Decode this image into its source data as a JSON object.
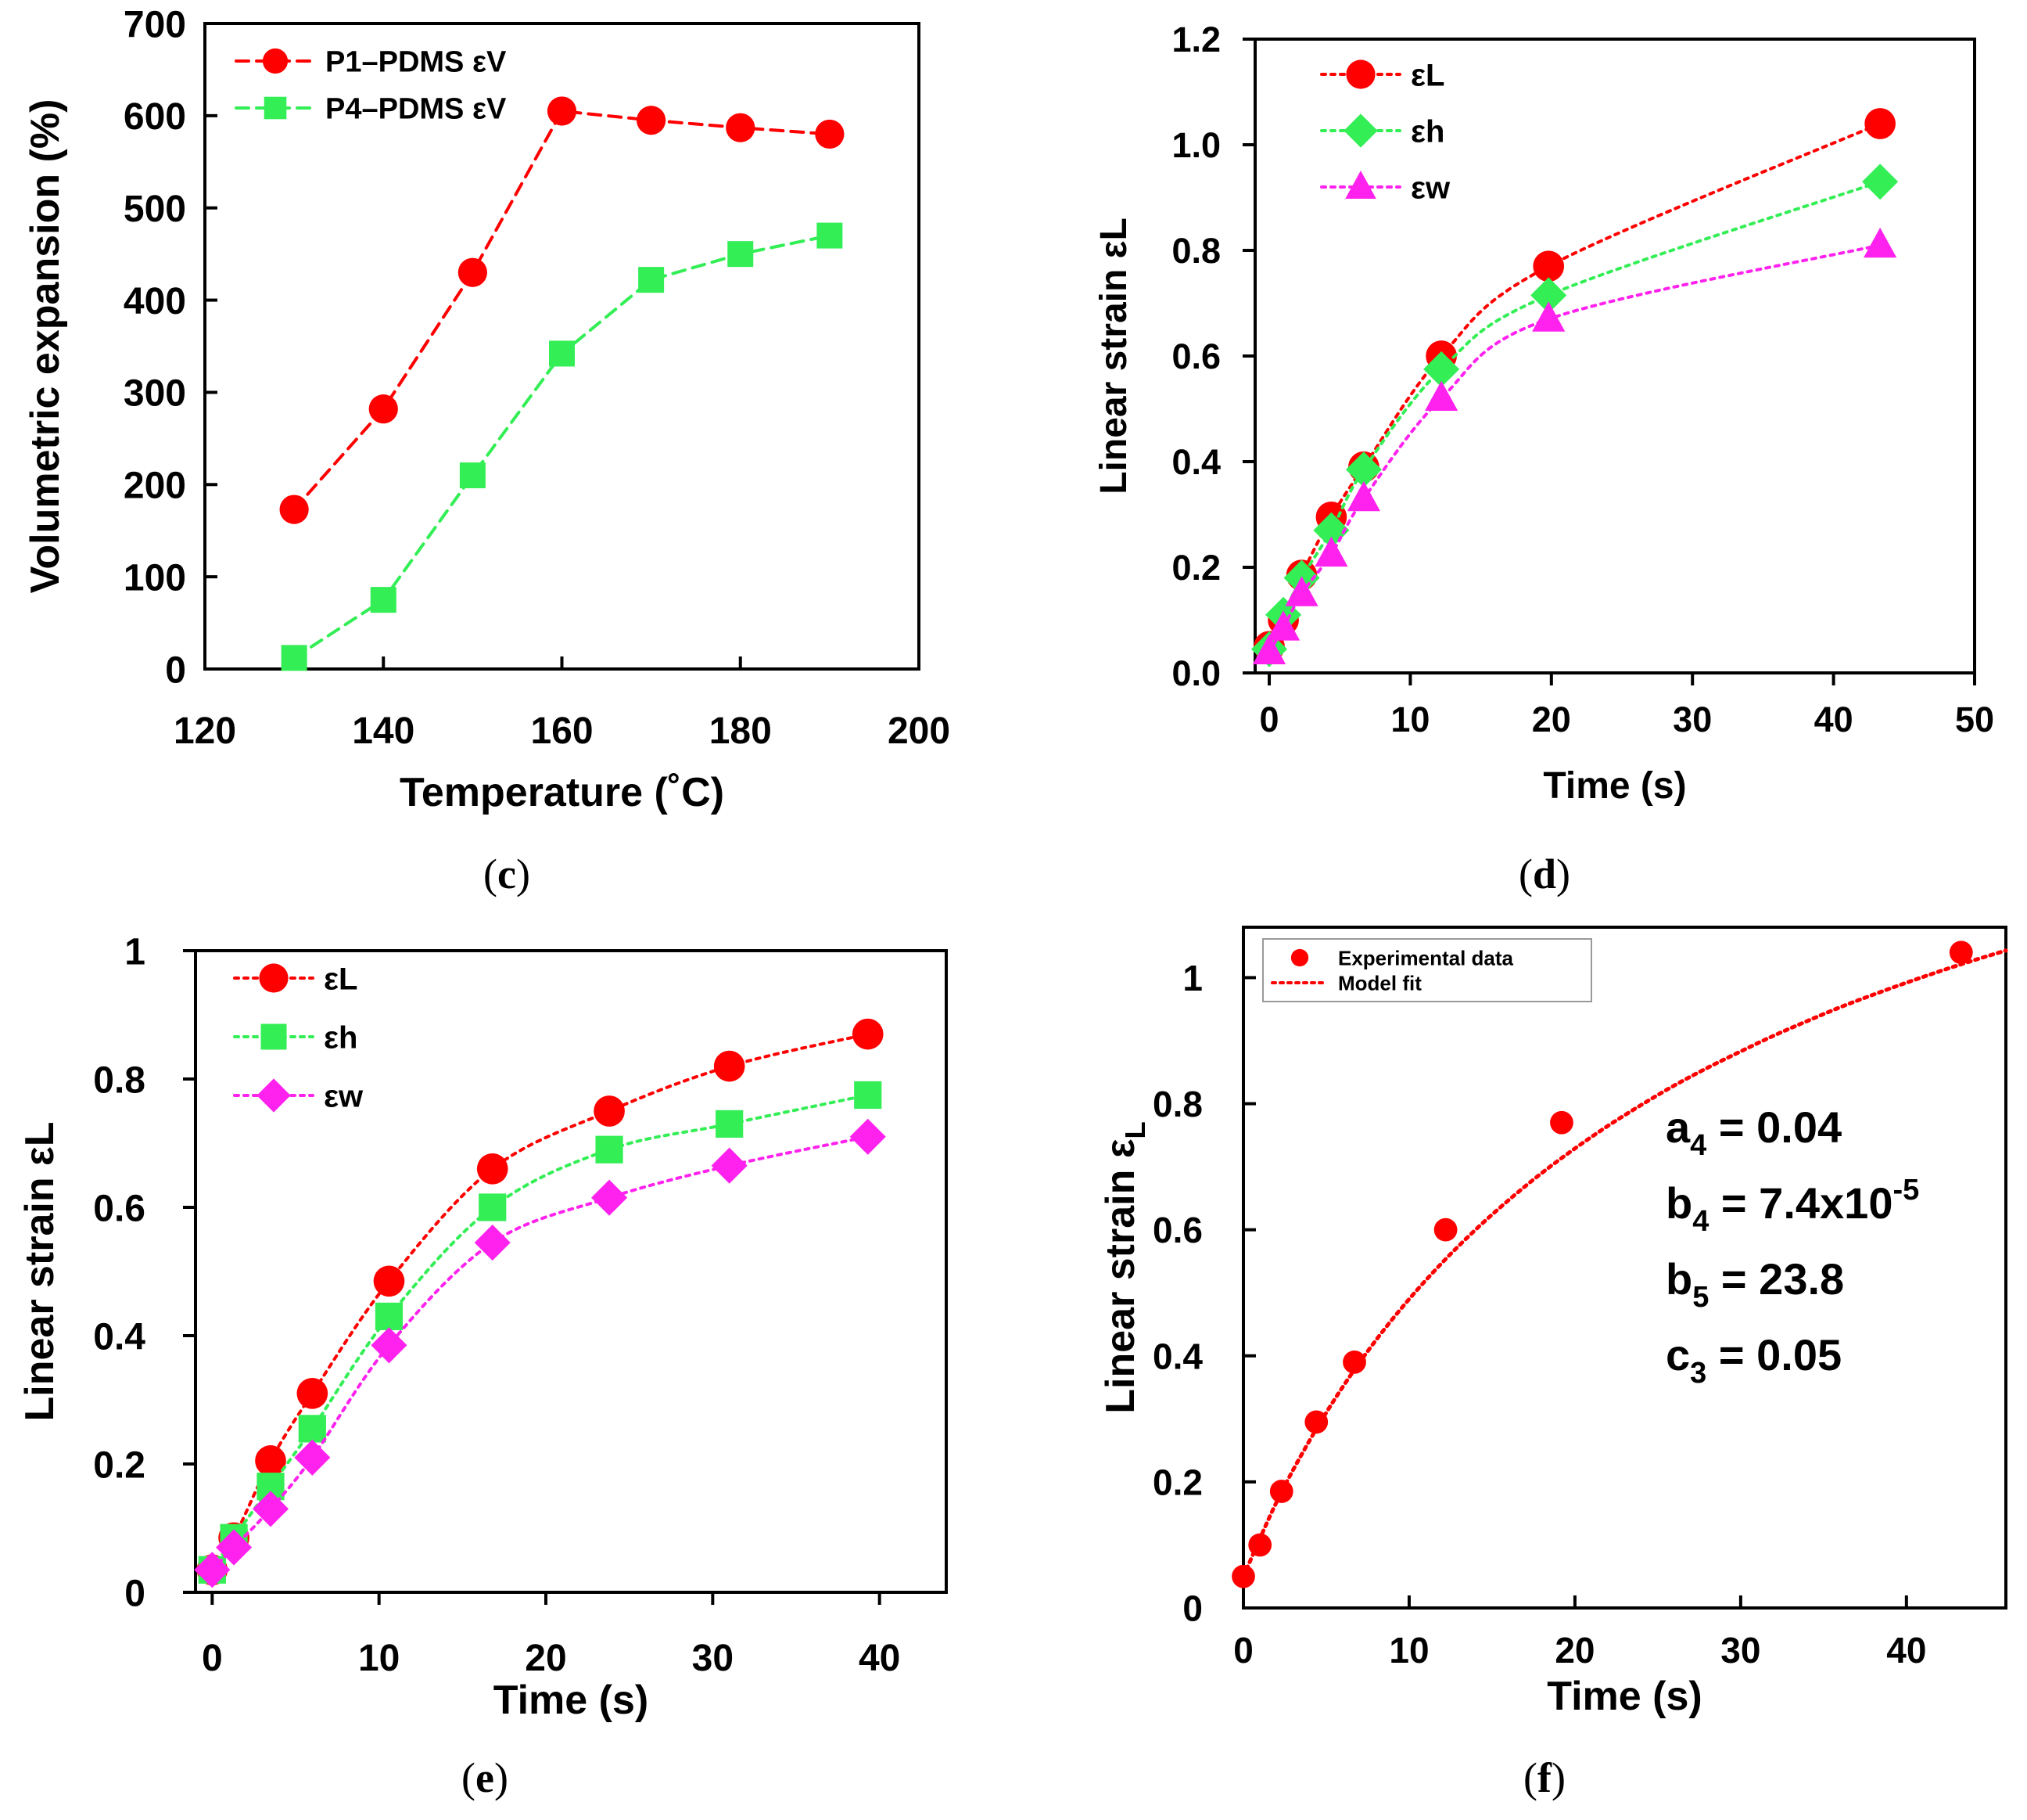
{
  "colors": {
    "red": "#ff0000",
    "green": "#33ee55",
    "magenta": "#ff22ee",
    "axis": "#000000"
  },
  "chart_data": [
    {
      "id": "c",
      "type": "line",
      "caption": "c",
      "xlabel": "Temperature (˚C)",
      "ylabel": "Volumetric expansion (%)",
      "xlim": [
        120,
        200
      ],
      "ylim": [
        0,
        700
      ],
      "xticks": [
        120,
        140,
        160,
        180,
        200
      ],
      "yticks": [
        0,
        100,
        200,
        300,
        400,
        500,
        600,
        700
      ],
      "x": [
        130,
        140,
        150,
        160,
        170,
        180,
        190
      ],
      "series": [
        {
          "name": "P1–PDMS εV",
          "color": "red",
          "marker": "circle",
          "dash": "dashed",
          "values": [
            173,
            282,
            430,
            605,
            595,
            587,
            580
          ]
        },
        {
          "name": "P4–PDMS εV",
          "color": "green",
          "marker": "square",
          "dash": "dashed",
          "values": [
            12,
            75,
            210,
            342,
            422,
            450,
            470
          ]
        }
      ]
    },
    {
      "id": "d",
      "type": "line",
      "caption": "d",
      "xlabel": "Time (s)",
      "ylabel": "Linear strain εL",
      "xlim": [
        -1,
        50
      ],
      "ylim": [
        0,
        1.2
      ],
      "xticks": [
        0,
        10,
        20,
        30,
        40,
        50
      ],
      "yticks": [
        0.0,
        0.2,
        0.4,
        0.6,
        0.8,
        1.0,
        1.2
      ],
      "ytick_labels": [
        "0.0",
        "0.2",
        "0.4",
        "0.6",
        "0.8",
        "1.0",
        "1.2"
      ],
      "series": [
        {
          "name": "εL",
          "color": "red",
          "marker": "circle",
          "dash": "dotted",
          "x": [
            0,
            1,
            2.3,
            4.4,
            6.7,
            12.2,
            19.8,
            43.3
          ],
          "values": [
            0.05,
            0.1,
            0.185,
            0.295,
            0.39,
            0.6,
            0.77,
            1.04
          ]
        },
        {
          "name": "εh",
          "color": "green",
          "marker": "diamond",
          "dash": "dotted",
          "x": [
            0,
            1,
            2.3,
            4.4,
            6.7,
            12.2,
            19.8,
            43.3
          ],
          "values": [
            0.045,
            0.11,
            0.18,
            0.27,
            0.385,
            0.575,
            0.715,
            0.93
          ]
        },
        {
          "name": "εw",
          "color": "magenta",
          "marker": "triangle",
          "dash": "dotted",
          "x": [
            0,
            1,
            2.3,
            4.4,
            6.7,
            12.2,
            19.8,
            43.3
          ],
          "values": [
            0.04,
            0.085,
            0.15,
            0.225,
            0.33,
            0.52,
            0.67,
            0.81
          ]
        }
      ]
    },
    {
      "id": "e",
      "type": "line",
      "caption": "e",
      "xlabel": "Time (s)",
      "ylabel": "Linear strain εL",
      "xlim": [
        -1,
        44
      ],
      "ylim": [
        0,
        1
      ],
      "xticks": [
        0,
        10,
        20,
        30,
        40
      ],
      "yticks": [
        0,
        0.2,
        0.4,
        0.6,
        0.8,
        1
      ],
      "ytick_labels": [
        "0",
        "0.2",
        "0.4",
        "0.6",
        "0.8",
        "1"
      ],
      "series": [
        {
          "name": "εL",
          "color": "red",
          "marker": "circle",
          "dash": "dotted",
          "x": [
            0,
            1.3,
            3.5,
            6,
            10.6,
            16.8,
            23.8,
            31,
            39.3
          ],
          "values": [
            0.035,
            0.085,
            0.205,
            0.31,
            0.485,
            0.66,
            0.75,
            0.82,
            0.87
          ]
        },
        {
          "name": "εh",
          "color": "green",
          "marker": "square",
          "dash": "dotted",
          "x": [
            0,
            1.3,
            3.5,
            6,
            10.6,
            16.8,
            23.8,
            31,
            39.3
          ],
          "values": [
            0.035,
            0.085,
            0.165,
            0.255,
            0.43,
            0.6,
            0.69,
            0.73,
            0.775
          ]
        },
        {
          "name": "εw",
          "color": "magenta",
          "marker": "diamond",
          "dash": "dotted",
          "x": [
            0,
            1.3,
            3.5,
            6,
            10.6,
            16.8,
            23.8,
            31,
            39.3
          ],
          "values": [
            0.035,
            0.07,
            0.13,
            0.21,
            0.385,
            0.545,
            0.615,
            0.665,
            0.71
          ]
        }
      ]
    },
    {
      "id": "f",
      "type": "scatter",
      "caption": "f",
      "xlabel": "Time (s)",
      "ylabel": "Linear strain ε",
      "ylabel_sub": "L",
      "xlim": [
        0,
        46
      ],
      "ylim": [
        0,
        1.08
      ],
      "xticks": [
        0,
        10,
        20,
        30,
        40
      ],
      "yticks": [
        0,
        0.2,
        0.4,
        0.6,
        0.8,
        1
      ],
      "ytick_labels": [
        "0",
        "0.2",
        "0.4",
        "0.6",
        "0.8",
        "1"
      ],
      "series": [
        {
          "name": "Experimental data",
          "color": "red",
          "marker": "circle",
          "x": [
            0,
            1,
            2.3,
            4.4,
            6.7,
            12.2,
            19.2,
            43.3
          ],
          "values": [
            0.05,
            0.1,
            0.185,
            0.295,
            0.39,
            0.6,
            0.77,
            1.04
          ]
        }
      ],
      "fit": {
        "name": "Model fit",
        "color": "red",
        "dash": "dotted",
        "x": [
          0,
          2,
          4,
          6,
          8,
          10,
          12,
          14,
          16,
          18,
          20,
          22,
          24,
          26,
          28,
          30,
          32,
          34,
          36,
          38,
          40,
          42,
          44,
          46
        ],
        "values": [
          0.05,
          0.168,
          0.266,
          0.351,
          0.425,
          0.49,
          0.548,
          0.6,
          0.647,
          0.69,
          0.729,
          0.765,
          0.798,
          0.829,
          0.857,
          0.883,
          0.908,
          0.931,
          0.953,
          0.973,
          0.992,
          1.01,
          1.027,
          1.043
        ]
      },
      "params": [
        {
          "name": "a",
          "sub": "4",
          "value": " = 0.04",
          "sup": ""
        },
        {
          "name": "b",
          "sub": "4",
          "value": " = 7.4x10",
          "sup": "-5"
        },
        {
          "name": "b",
          "sub": "5",
          "value": " = 23.8",
          "sup": ""
        },
        {
          "name": "c",
          "sub": "3",
          "value": " = 0.05",
          "sup": ""
        }
      ]
    }
  ]
}
